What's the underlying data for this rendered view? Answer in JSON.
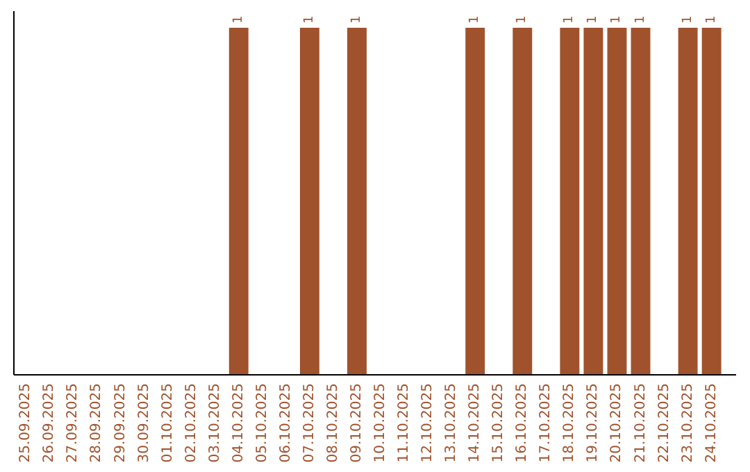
{
  "chart_data": {
    "type": "bar",
    "categories": [
      "25.09.2025",
      "26.09.2025",
      "27.09.2025",
      "28.09.2025",
      "29.09.2025",
      "30.09.2025",
      "01.10.2025",
      "02.10.2025",
      "03.10.2025",
      "04.10.2025",
      "05.10.2025",
      "06.10.2025",
      "07.10.2025",
      "08.10.2025",
      "09.10.2025",
      "10.10.2025",
      "11.10.2025",
      "12.10.2025",
      "13.10.2025",
      "14.10.2025",
      "15.10.2025",
      "16.10.2025",
      "17.10.2025",
      "18.10.2025",
      "19.10.2025",
      "20.10.2025",
      "21.10.2025",
      "22.10.2025",
      "23.10.2025",
      "24.10.2025"
    ],
    "values": [
      0,
      0,
      0,
      0,
      0,
      0,
      0,
      0,
      0,
      1,
      0,
      0,
      1,
      0,
      1,
      0,
      0,
      0,
      0,
      1,
      0,
      1,
      0,
      1,
      1,
      1,
      1,
      0,
      1,
      1
    ],
    "value_labels": [
      null,
      null,
      null,
      null,
      null,
      null,
      null,
      null,
      null,
      "1",
      null,
      null,
      "1",
      null,
      "1",
      null,
      null,
      null,
      null,
      "1",
      null,
      "1",
      null,
      "1",
      "1",
      "1",
      "1",
      null,
      "1",
      "1"
    ],
    "color": "#a0522d",
    "tick_labels": "x"
  }
}
